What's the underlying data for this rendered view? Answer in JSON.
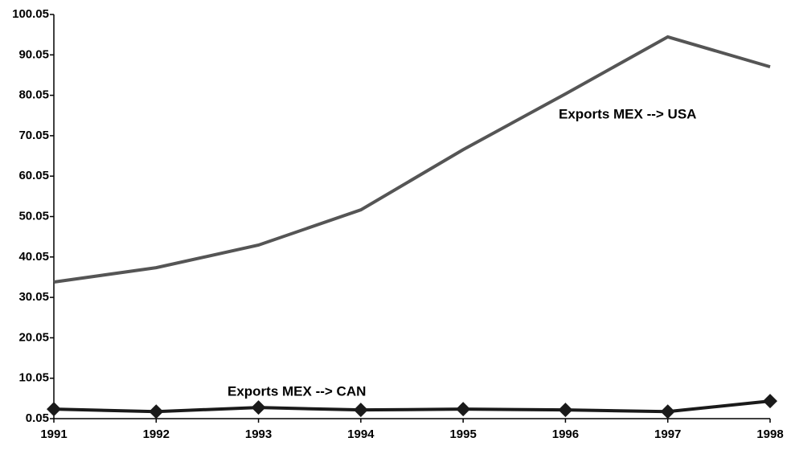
{
  "chart_data": {
    "type": "line",
    "categories": [
      "1991",
      "1992",
      "1993",
      "1994",
      "1995",
      "1996",
      "1997",
      "1998"
    ],
    "series": [
      {
        "name": "Exports MEX --> USA",
        "color": "#555555",
        "marker": "none",
        "values": [
          33.85,
          37.4,
          43.0,
          51.7,
          66.6,
          80.4,
          94.5,
          87.1
        ]
      },
      {
        "name": "Exports MEX --> CAN",
        "color": "#1a1a1a",
        "marker": "diamond",
        "values": [
          2.4,
          1.8,
          2.8,
          2.2,
          2.4,
          2.2,
          1.8,
          4.4
        ]
      }
    ],
    "ylim": [
      0.05,
      100.05
    ],
    "yticks": [
      0.05,
      10.05,
      20.05,
      30.05,
      40.05,
      50.05,
      60.05,
      70.05,
      80.05,
      90.05,
      100.05
    ],
    "grid": false
  }
}
